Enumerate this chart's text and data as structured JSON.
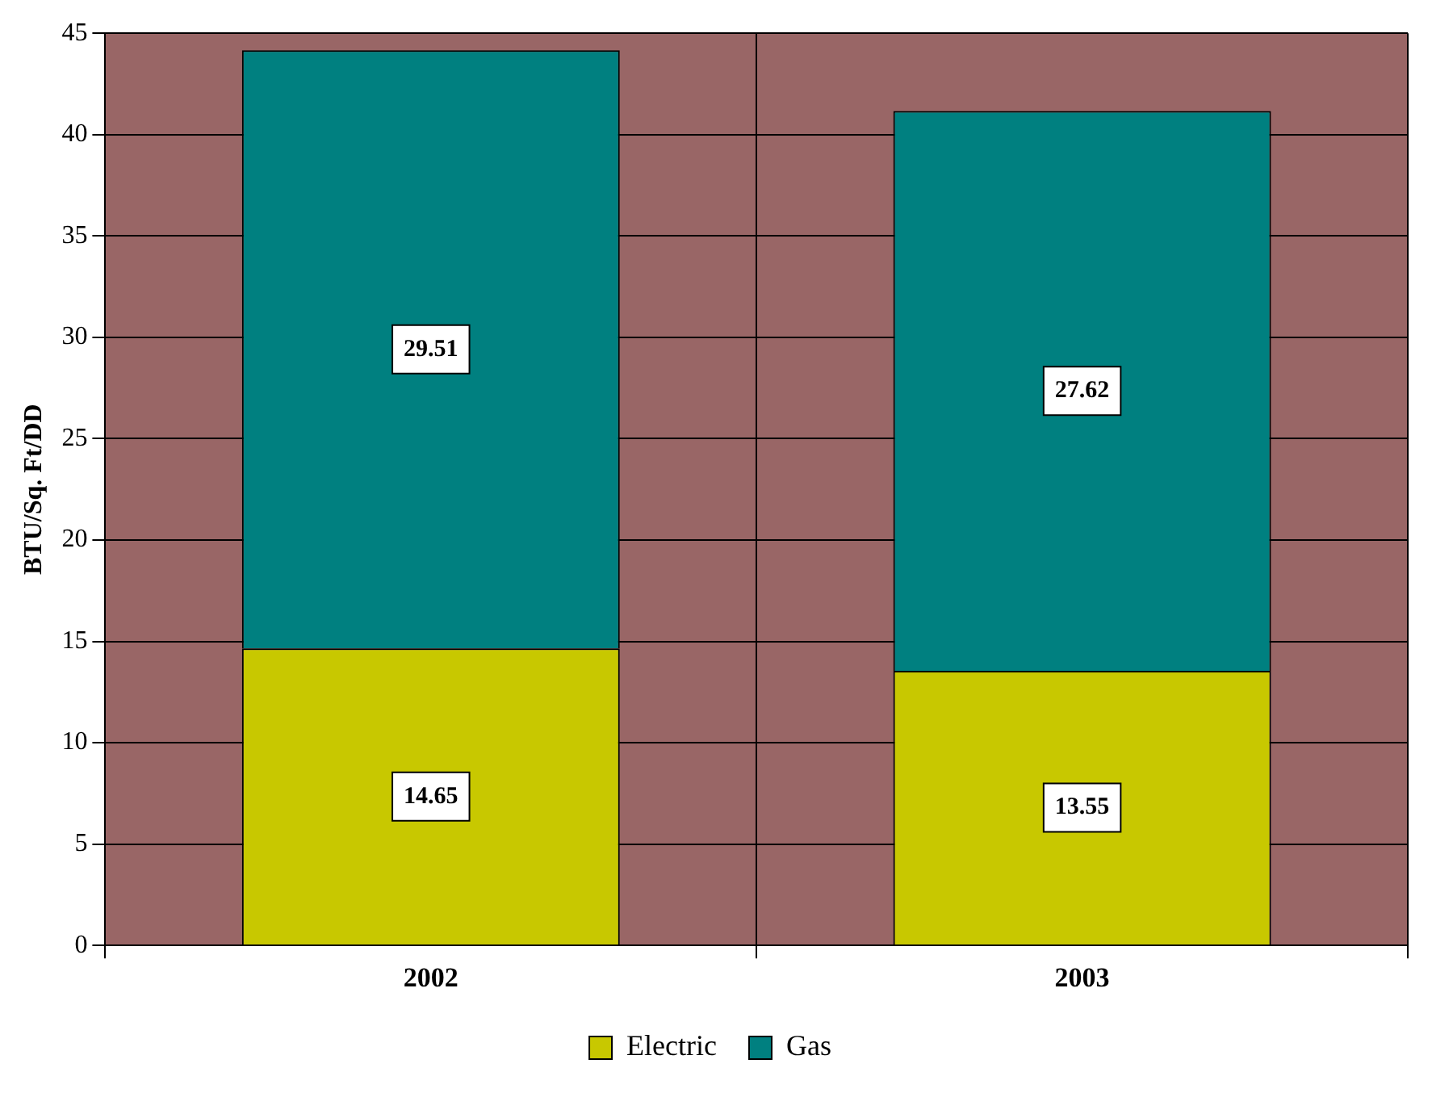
{
  "chart_data": {
    "type": "bar",
    "ylabel": "BTU/Sq. Ft/DD",
    "categories": [
      "2002",
      "2003"
    ],
    "stacked": true,
    "series": [
      {
        "name": "Electric",
        "color": "#c8c800",
        "values": [
          14.65,
          13.55
        ]
      },
      {
        "name": "Gas",
        "color": "#008080",
        "values": [
          29.51,
          27.62
        ]
      }
    ],
    "ylim": [
      0,
      45
    ],
    "yticks": [
      0,
      5,
      10,
      15,
      20,
      25,
      30,
      35,
      40,
      45
    ],
    "grid": true,
    "legend": "bottom",
    "data_labels": true
  }
}
